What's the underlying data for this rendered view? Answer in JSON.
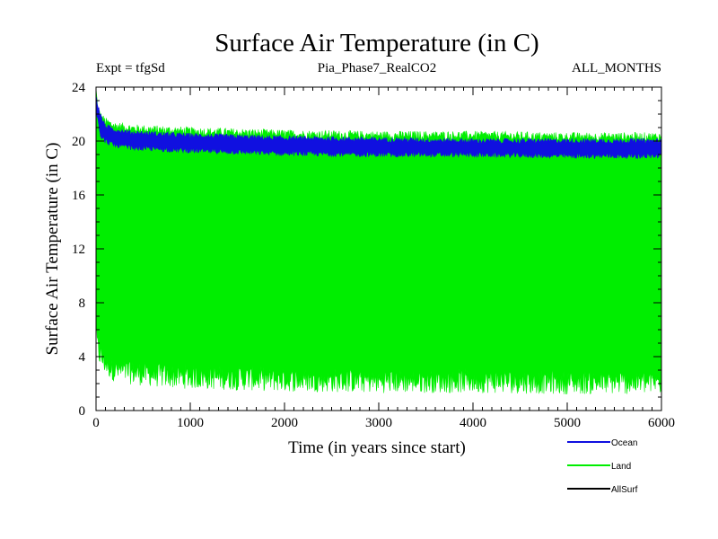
{
  "chart_data": {
    "type": "area",
    "title": "Surface Air Temperature (in C)",
    "subtitle_left": "Expt = tfgSd",
    "subtitle_center": "Pia_Phase7_RealCO2",
    "subtitle_right": "ALL_MONTHS",
    "xlabel": "Time (in years since start)",
    "ylabel": "Surface Air Temperature (in C)",
    "xlim": [
      0,
      6000
    ],
    "ylim": [
      0,
      24
    ],
    "x_ticks": [
      0,
      1000,
      2000,
      3000,
      4000,
      5000,
      6000
    ],
    "y_ticks": [
      0,
      4,
      8,
      12,
      16,
      20,
      24
    ],
    "legend_position": "bottom-right",
    "series": [
      {
        "name": "Ocean",
        "color": "#1010e0",
        "envelope": {
          "x": [
            0,
            50,
            100,
            200,
            400,
            700,
            1000,
            1500,
            2000,
            3000,
            4000,
            5000,
            6000
          ],
          "upper": [
            23.2,
            21.8,
            21.1,
            20.8,
            20.6,
            20.5,
            20.4,
            20.3,
            20.2,
            20.1,
            20.0,
            20.0,
            20.0
          ],
          "lower": [
            22.4,
            20.4,
            20.0,
            19.7,
            19.5,
            19.4,
            19.3,
            19.2,
            19.1,
            19.0,
            19.0,
            18.9,
            18.9
          ]
        }
      },
      {
        "name": "Land",
        "color": "#00ee00",
        "envelope": {
          "x": [
            0,
            20,
            50,
            100,
            200,
            400,
            700,
            1000,
            1500,
            2000,
            3000,
            4000,
            5000,
            6000
          ],
          "upper": [
            23.8,
            22.3,
            21.8,
            21.4,
            21.1,
            20.9,
            20.8,
            20.7,
            20.6,
            20.5,
            20.4,
            20.4,
            20.3,
            20.3
          ],
          "lower": [
            6.0,
            4.5,
            4.0,
            3.5,
            3.0,
            2.8,
            2.6,
            2.5,
            2.4,
            2.3,
            2.2,
            2.2,
            2.1,
            2.1
          ]
        }
      },
      {
        "name": "AllSurf",
        "color": "#000000",
        "envelope": null
      }
    ]
  }
}
